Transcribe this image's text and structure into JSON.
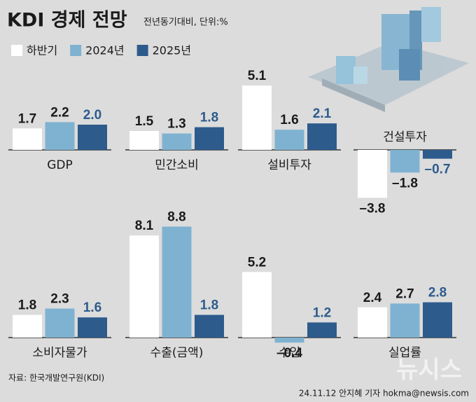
{
  "chart_data": {
    "type": "bar",
    "title": "KDI 경제 전망",
    "subtitle": "전년동기대비, 단위:%",
    "source": "자료: 한국개발연구원(KDI)",
    "credit": "24.11.12 안지혜 기자 hokma@newsis.com",
    "watermark": "뉴시스",
    "categories": [
      "GDP",
      "민간소비",
      "설비투자",
      "건설투자",
      "소비자물가",
      "수출(금액)",
      "수입",
      "실업률"
    ],
    "series": [
      {
        "name": "하반기",
        "color": "#ffffff",
        "label_color": "#1a1a1a",
        "values": [
          1.7,
          1.5,
          5.1,
          -3.8,
          1.8,
          8.1,
          5.2,
          2.4
        ],
        "value_labels": [
          "1.7",
          "1.5",
          "5.1",
          "–3.8",
          "1.8",
          "8.1",
          "5.2",
          "2.4"
        ]
      },
      {
        "name": "2024년",
        "color": "#7fb2d1",
        "label_color": "#1a1a1a",
        "values": [
          2.2,
          1.3,
          1.6,
          -1.8,
          2.3,
          8.8,
          -0.4,
          2.7
        ],
        "value_labels": [
          "2.2",
          "1.3",
          "1.6",
          "–1.8",
          "2.3",
          "8.8",
          "–0.4",
          "2.7"
        ]
      },
      {
        "name": "2025년",
        "color": "#2d5b8c",
        "label_color": "#2d5b8c",
        "values": [
          2.0,
          1.8,
          2.1,
          -0.7,
          1.6,
          1.8,
          1.2,
          2.8
        ],
        "value_labels": [
          "2.0",
          "1.8",
          "2.1",
          "–0.7",
          "1.6",
          "1.8",
          "1.2",
          "2.8"
        ]
      }
    ]
  }
}
